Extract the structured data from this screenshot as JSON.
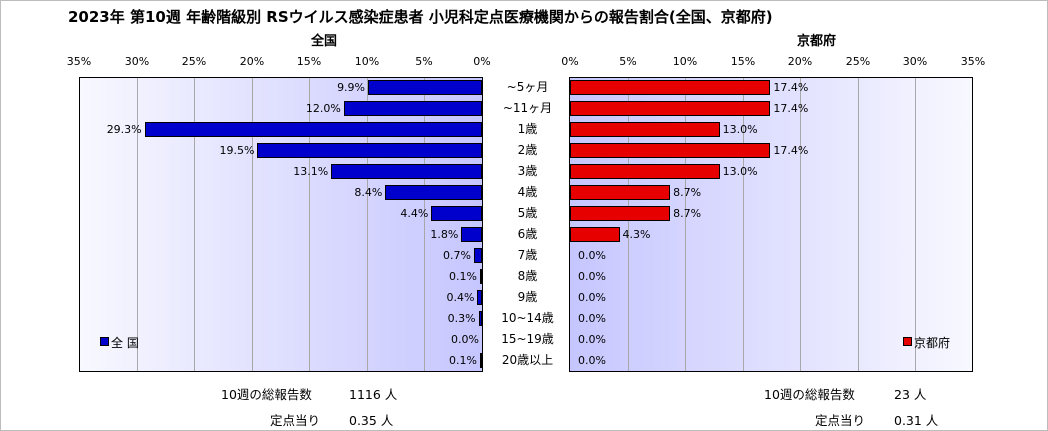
{
  "title": "2023年 第10週 年齢階級別 RSウイルス感染症患者 小児科定点医療機関からの報告割合(全国、京都府)",
  "chart_data": [
    {
      "type": "bar",
      "orientation": "horizontal",
      "direction": "right-to-left",
      "title": "全国",
      "axis_ticks": [
        "35%",
        "30%",
        "25%",
        "20%",
        "15%",
        "10%",
        "5%",
        "0%"
      ],
      "xlim": [
        0,
        35
      ],
      "grid": true,
      "legend": "bottom-left",
      "categories": [
        "~5ヶ月",
        "~11ヶ月",
        "1歳",
        "2歳",
        "3歳",
        "4歳",
        "5歳",
        "6歳",
        "7歳",
        "8歳",
        "9歳",
        "10~14歳",
        "15~19歳",
        "20歳以上"
      ],
      "series": [
        {
          "name": "全 国",
          "color": "#0000cc",
          "values": [
            9.9,
            12.0,
            29.3,
            19.5,
            13.1,
            8.4,
            4.4,
            1.8,
            0.7,
            0.1,
            0.4,
            0.3,
            0.0,
            0.1
          ],
          "labels": [
            "9.9%",
            "12.0%",
            "29.3%",
            "19.5%",
            "13.1%",
            "8.4%",
            "4.4%",
            "1.8%",
            "0.7%",
            "0.1%",
            "0.4%",
            "0.3%",
            "0.0%",
            "0.1%"
          ]
        }
      ]
    },
    {
      "type": "bar",
      "orientation": "horizontal",
      "direction": "left-to-right",
      "title": "京都府",
      "axis_ticks": [
        "0%",
        "5%",
        "10%",
        "15%",
        "20%",
        "25%",
        "30%",
        "35%"
      ],
      "xlim": [
        0,
        35
      ],
      "grid": true,
      "legend": "bottom-right",
      "categories": [
        "~5ヶ月",
        "~11ヶ月",
        "1歳",
        "2歳",
        "3歳",
        "4歳",
        "5歳",
        "6歳",
        "7歳",
        "8歳",
        "9歳",
        "10~14歳",
        "15~19歳",
        "20歳以上"
      ],
      "series": [
        {
          "name": "京都府",
          "color": "#e60000",
          "values": [
            17.4,
            17.4,
            13.0,
            17.4,
            13.0,
            8.7,
            8.7,
            4.3,
            0.0,
            0.0,
            0.0,
            0.0,
            0.0,
            0.0
          ],
          "labels": [
            "17.4%",
            "17.4%",
            "13.0%",
            "17.4%",
            "13.0%",
            "8.7%",
            "8.7%",
            "4.3%",
            "0.0%",
            "0.0%",
            "0.0%",
            "0.0%",
            "0.0%",
            "0.0%"
          ]
        }
      ]
    }
  ],
  "footer": {
    "national": {
      "total_label": "10週の総報告数",
      "total_value": "1116 人",
      "per_label": "定点当り",
      "per_value": "0.35 人"
    },
    "kyoto": {
      "total_label": "10週の総報告数",
      "total_value": "23 人",
      "per_label": "定点当り",
      "per_value": "0.31 人"
    }
  }
}
